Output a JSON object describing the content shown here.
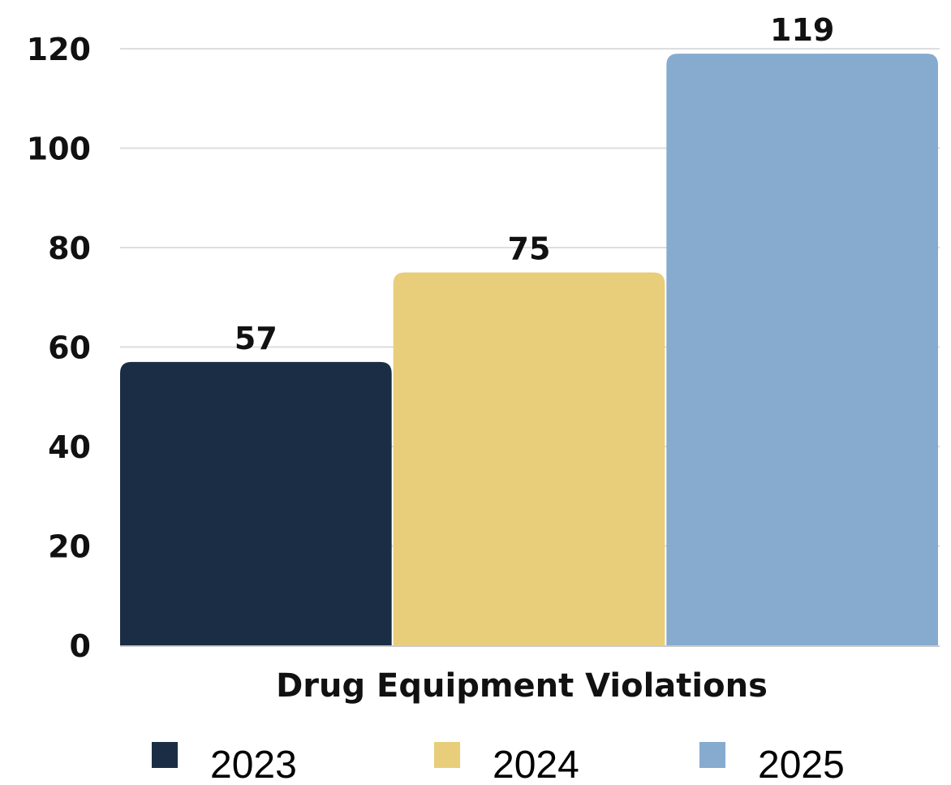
{
  "chart_data": {
    "type": "bar",
    "categories": [
      "Drug Equipment Violations"
    ],
    "series": [
      {
        "name": "2023",
        "values": [
          57
        ],
        "color": "#1B2D45"
      },
      {
        "name": "2024",
        "values": [
          75
        ],
        "color": "#E8CD7A"
      },
      {
        "name": "2025",
        "values": [
          119
        ],
        "color": "#86ABCF"
      }
    ],
    "ylim": [
      0,
      120
    ],
    "yticks": [
      0,
      20,
      40,
      60,
      80,
      100,
      120
    ],
    "data_labels": [
      "57",
      "75",
      "119"
    ],
    "grid": true,
    "legend": "bottom",
    "colors": {
      "gridline": "#dddddd",
      "axis": "#cccccc",
      "text": "#111111"
    }
  }
}
